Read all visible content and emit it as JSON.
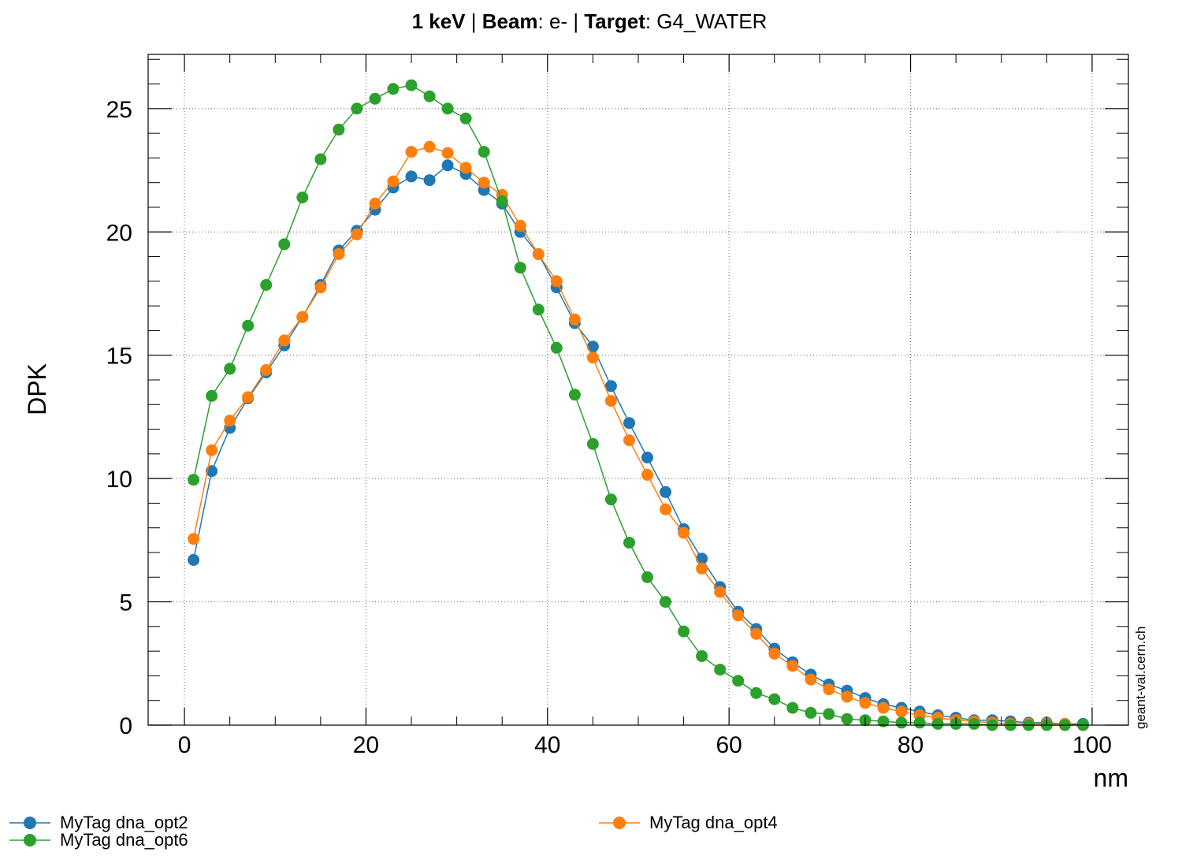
{
  "chart_data": {
    "type": "line",
    "title": {
      "parts": [
        {
          "text": "1 keV",
          "bold": true
        },
        {
          "text": " | ",
          "bold": false
        },
        {
          "text": "Beam",
          "bold": true
        },
        {
          "text": ": e- | ",
          "bold": false
        },
        {
          "text": "Target",
          "bold": true
        },
        {
          "text": ": G4_WATER",
          "bold": false
        }
      ]
    },
    "xlabel": "nm",
    "ylabel": "DPK",
    "xlim": [
      -4,
      104
    ],
    "ylim": [
      0,
      27.2
    ],
    "xticks": [
      0,
      20,
      40,
      60,
      80,
      100
    ],
    "yticks": [
      0,
      5,
      10,
      15,
      20,
      25
    ],
    "grid": true,
    "watermark": "geant-val.cern.ch",
    "legend_placement": "bottom",
    "x": [
      1,
      3,
      5,
      7,
      9,
      11,
      13,
      15,
      17,
      19,
      21,
      23,
      25,
      27,
      29,
      31,
      33,
      35,
      37,
      39,
      41,
      43,
      45,
      47,
      49,
      51,
      53,
      55,
      57,
      59,
      61,
      63,
      65,
      67,
      69,
      71,
      73,
      75,
      77,
      79,
      81,
      83,
      85,
      87,
      89,
      91,
      93,
      95,
      97,
      99
    ],
    "series": [
      {
        "name": "MyTag dna_opt2",
        "color": "#1f77b4",
        "values": [
          6.7,
          10.3,
          12.05,
          13.25,
          14.3,
          15.4,
          16.55,
          17.85,
          19.25,
          20.05,
          20.9,
          21.8,
          22.25,
          22.1,
          22.7,
          22.35,
          21.7,
          21.15,
          20.0,
          19.1,
          17.75,
          16.3,
          15.35,
          13.75,
          12.25,
          10.85,
          9.45,
          7.95,
          6.75,
          5.6,
          4.6,
          3.9,
          3.1,
          2.55,
          2.05,
          1.65,
          1.4,
          1.1,
          0.85,
          0.7,
          0.55,
          0.4,
          0.3,
          0.2,
          0.2,
          0.15,
          0.1,
          0.1,
          0.05,
          0.05
        ]
      },
      {
        "name": "MyTag dna_opt4",
        "color": "#ff7f0e",
        "values": [
          7.55,
          11.15,
          12.35,
          13.3,
          14.4,
          15.6,
          16.55,
          17.75,
          19.1,
          19.9,
          21.15,
          22.05,
          23.25,
          23.45,
          23.2,
          22.6,
          22.0,
          21.5,
          20.25,
          19.1,
          18.0,
          16.45,
          14.9,
          13.15,
          11.55,
          10.15,
          8.75,
          7.8,
          6.35,
          5.4,
          4.45,
          3.7,
          2.9,
          2.4,
          1.85,
          1.45,
          1.15,
          0.9,
          0.7,
          0.55,
          0.4,
          0.3,
          0.2,
          0.15,
          0.1,
          0.05,
          0.05,
          0.05,
          0.05,
          0.0
        ]
      },
      {
        "name": "MyTag dna_opt6",
        "color": "#2ca02c",
        "values": [
          9.95,
          13.35,
          14.45,
          16.2,
          17.85,
          19.5,
          21.4,
          22.95,
          24.15,
          25.0,
          25.4,
          25.8,
          25.95,
          25.5,
          25.0,
          24.6,
          23.25,
          21.25,
          18.55,
          16.85,
          15.3,
          13.4,
          11.4,
          9.15,
          7.4,
          6.0,
          5.0,
          3.8,
          2.8,
          2.25,
          1.8,
          1.3,
          1.05,
          0.7,
          0.5,
          0.45,
          0.25,
          0.2,
          0.15,
          0.1,
          0.1,
          0.05,
          0.05,
          0.05,
          0.0,
          0.0,
          0.0,
          0.0,
          0.0,
          0.0
        ]
      }
    ]
  }
}
